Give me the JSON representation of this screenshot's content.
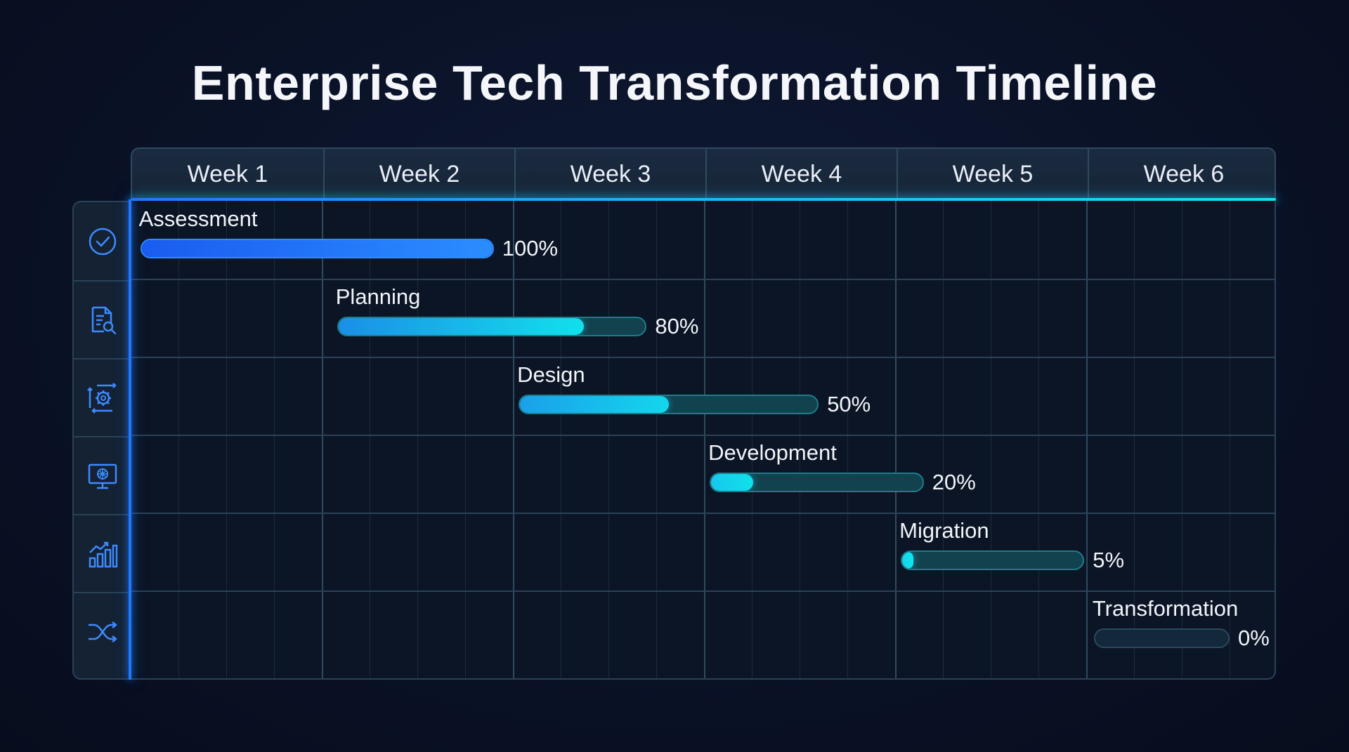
{
  "title": "Enterprise Tech Transformation Timeline",
  "colors": {
    "accent_blue": "#1f78ff",
    "accent_cyan": "#16e2f0",
    "background": "#0a1227"
  },
  "chart_data": {
    "type": "gantt",
    "title": "Enterprise Tech Transformation Timeline",
    "weeks": [
      "Week 1",
      "Week 2",
      "Week 3",
      "Week 4",
      "Week 5",
      "Week 6"
    ],
    "tasks": [
      {
        "name": "Assessment",
        "start_week": 0.05,
        "end_week": 1.9,
        "progress": 100,
        "progress_label": "100%",
        "icon": "check-circle-icon"
      },
      {
        "name": "Planning",
        "start_week": 1.08,
        "end_week": 2.7,
        "progress": 80,
        "progress_label": "80%",
        "icon": "document-search-icon"
      },
      {
        "name": "Design",
        "start_week": 2.03,
        "end_week": 3.6,
        "progress": 50,
        "progress_label": "50%",
        "icon": "gear-arrows-icon"
      },
      {
        "name": "Development",
        "start_week": 3.03,
        "end_week": 4.15,
        "progress": 20,
        "progress_label": "20%",
        "icon": "monitor-icon"
      },
      {
        "name": "Migration",
        "start_week": 4.03,
        "end_week": 4.99,
        "progress": 5,
        "progress_label": "5%",
        "icon": "bar-chart-icon"
      },
      {
        "name": "Transformation",
        "start_week": 5.04,
        "end_week": 5.75,
        "progress": 0,
        "progress_label": "0%",
        "icon": "shuffle-icon"
      }
    ]
  }
}
